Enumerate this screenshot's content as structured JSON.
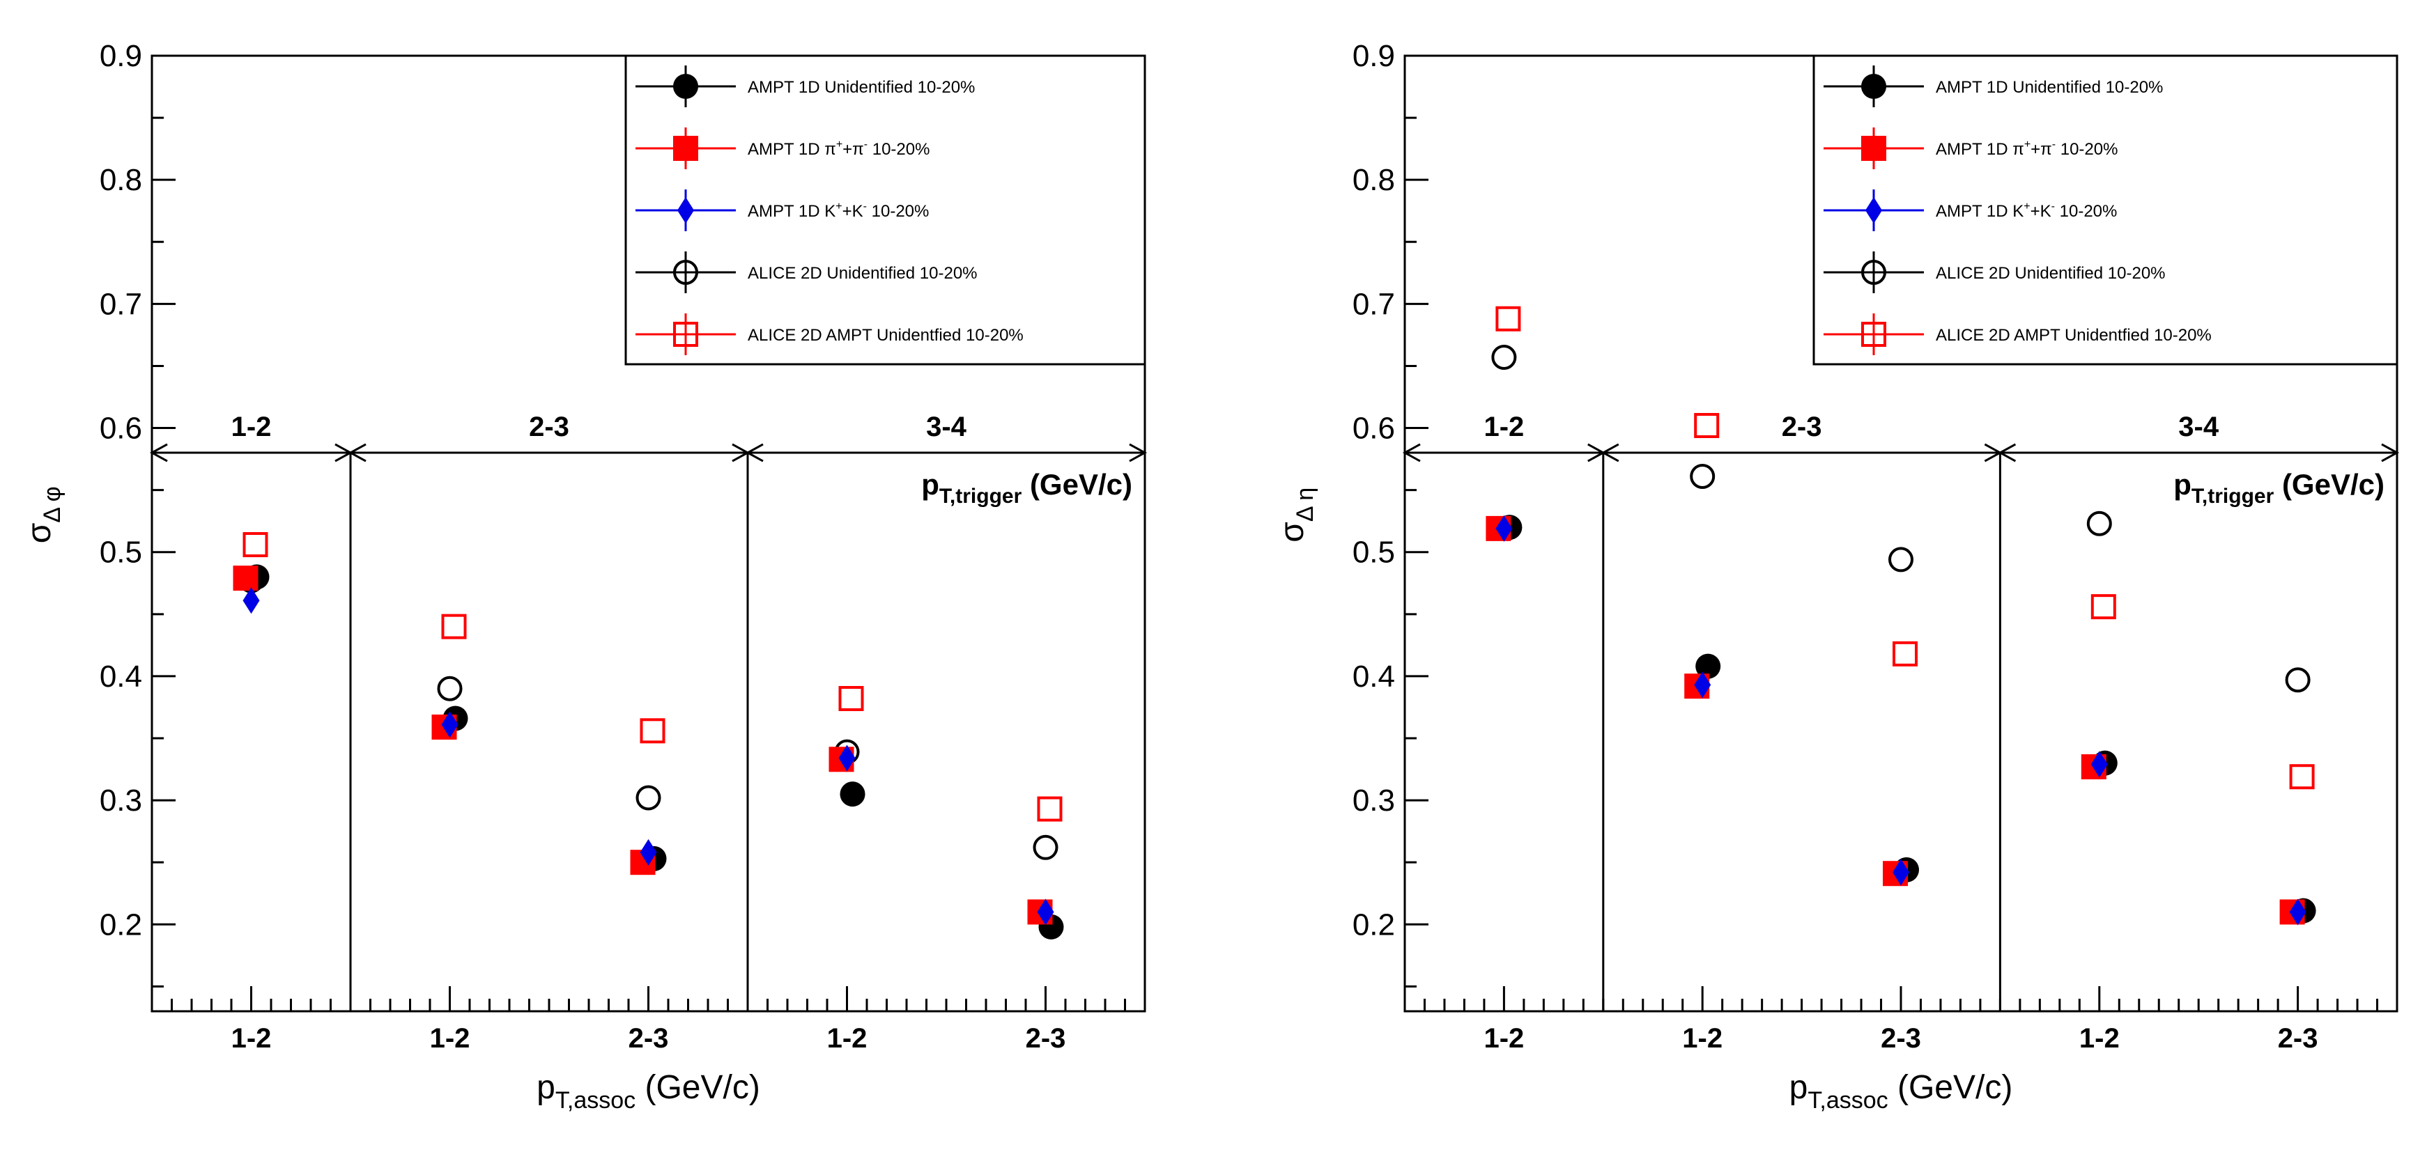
{
  "colors": {
    "ampt_unidentified": "#000000",
    "ampt_pion": "#ff0000",
    "ampt_kaon": "#0000e6",
    "alice_unidentified": "#000000",
    "alice_ampt": "#ff0000"
  },
  "legend": [
    {
      "key": "ampt_unid",
      "label_parts": [
        "AMPT 1D Unidentified 10-20%"
      ],
      "marker": "circle-filled",
      "color": "#000000"
    },
    {
      "key": "ampt_pion",
      "label_parts": [
        "AMPT 1D π",
        "+",
        "+π",
        "-",
        " 10-20%"
      ],
      "marker": "square-filled",
      "color": "#ff0000"
    },
    {
      "key": "ampt_kaon",
      "label_parts": [
        "AMPT 1D K",
        "+",
        "+K",
        "-",
        " 10-20%"
      ],
      "marker": "diamond-filled",
      "color": "#0000e6"
    },
    {
      "key": "alice_unid",
      "label_parts": [
        "ALICE 2D Unidentified 10-20%"
      ],
      "marker": "circle-open",
      "color": "#000000"
    },
    {
      "key": "alice_ampt",
      "label_parts": [
        "ALICE 2D AMPT Unidentfied 10-20%"
      ],
      "marker": "square-open",
      "color": "#ff0000"
    }
  ],
  "chart_data": [
    {
      "type": "scatter",
      "panel": "left",
      "ylabel_main": "σ",
      "ylabel_sub": "Δ φ",
      "xlabel_main": "p",
      "xlabel_sub": "T,assoc",
      "xlabel_unit": " (GeV/c)",
      "ylim": [
        0.13,
        0.9
      ],
      "yticks": [
        "0.2",
        "0.3",
        "0.4",
        "0.5",
        "0.6",
        "0.7",
        "0.8",
        "0.9"
      ],
      "categories": [
        "1-2",
        "1-2",
        "2-3",
        "1-2",
        "2-3"
      ],
      "trigger_ranges": [
        "1-2",
        "2-3",
        "3-4"
      ],
      "trigger_label_main": "p",
      "trigger_label_sub": "T,trigger",
      "trigger_label_unit": " (GeV/c)",
      "series": [
        {
          "name": "AMPT 1D Unidentified 10-20%",
          "key": "ampt_unid",
          "marker": "circle-filled",
          "color": "#000000",
          "values": [
            0.48,
            0.366,
            0.253,
            0.305,
            0.198
          ]
        },
        {
          "name": "AMPT 1D π++π- 10-20%",
          "key": "ampt_pion",
          "marker": "square-filled",
          "color": "#ff0000",
          "values": [
            0.479,
            0.359,
            0.25,
            0.333,
            0.21
          ]
        },
        {
          "name": "AMPT 1D K++K- 10-20%",
          "key": "ampt_kaon",
          "marker": "diamond-filled",
          "color": "#0000e6",
          "values": [
            0.461,
            0.361,
            0.258,
            0.334,
            0.21
          ]
        },
        {
          "name": "ALICE 2D Unidentified 10-20%",
          "key": "alice_unid",
          "marker": "circle-open",
          "color": "#000000",
          "values": [
            0.477,
            0.39,
            0.302,
            0.339,
            0.262
          ]
        },
        {
          "name": "ALICE 2D AMPT Unidentfied 10-20%",
          "key": "alice_ampt",
          "marker": "square-open",
          "color": "#ff0000",
          "values": [
            0.506,
            0.44,
            0.356,
            0.382,
            0.293
          ]
        }
      ]
    },
    {
      "type": "scatter",
      "panel": "right",
      "ylabel_main": "σ",
      "ylabel_sub": "Δ η",
      "xlabel_main": "p",
      "xlabel_sub": "T,assoc",
      "xlabel_unit": " (GeV/c)",
      "ylim": [
        0.13,
        0.9
      ],
      "yticks": [
        "0.2",
        "0.3",
        "0.4",
        "0.5",
        "0.6",
        "0.7",
        "0.8",
        "0.9"
      ],
      "categories": [
        "1-2",
        "1-2",
        "2-3",
        "1-2",
        "2-3"
      ],
      "trigger_ranges": [
        "1-2",
        "2-3",
        "3-4"
      ],
      "trigger_label_main": "p",
      "trigger_label_sub": "T,trigger",
      "trigger_label_unit": " (GeV/c)",
      "series": [
        {
          "name": "AMPT 1D Unidentified 10-20%",
          "key": "ampt_unid",
          "marker": "circle-filled",
          "color": "#000000",
          "values": [
            0.52,
            0.408,
            0.244,
            0.33,
            0.211
          ]
        },
        {
          "name": "AMPT 1D π++π- 10-20%",
          "key": "ampt_pion",
          "marker": "square-filled",
          "color": "#ff0000",
          "values": [
            0.519,
            0.392,
            0.241,
            0.327,
            0.21
          ]
        },
        {
          "name": "AMPT 1D K++K- 10-20%",
          "key": "ampt_kaon",
          "marker": "diamond-filled",
          "color": "#0000e6",
          "values": [
            0.519,
            0.393,
            0.242,
            0.329,
            0.21
          ]
        },
        {
          "name": "ALICE 2D Unidentified 10-20%",
          "key": "alice_unid",
          "marker": "circle-open",
          "color": "#000000",
          "values": [
            0.657,
            0.561,
            0.494,
            0.523,
            0.397
          ]
        },
        {
          "name": "ALICE 2D AMPT Unidentfied 10-20%",
          "key": "alice_ampt",
          "marker": "square-open",
          "color": "#ff0000",
          "values": [
            0.688,
            0.602,
            0.418,
            0.456,
            0.319
          ]
        }
      ]
    }
  ]
}
